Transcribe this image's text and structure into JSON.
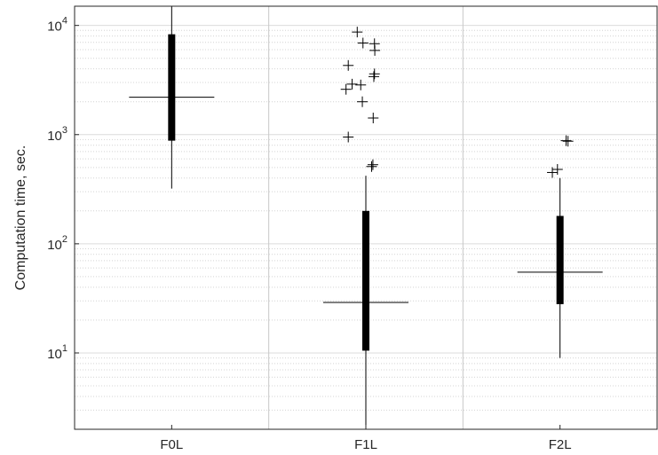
{
  "chart_data": {
    "type": "box",
    "ylabel": "Computation time, sec.",
    "xlabel": "",
    "yscale": "log",
    "ylim": [
      2,
      15000
    ],
    "yticks": [
      10,
      100,
      1000,
      10000
    ],
    "ytick_labels": [
      {
        "base": "10",
        "exp": "1"
      },
      {
        "base": "10",
        "exp": "2"
      },
      {
        "base": "10",
        "exp": "3"
      },
      {
        "base": "10",
        "exp": "4"
      }
    ],
    "categories": [
      "F0L",
      "F1L",
      "F2L"
    ],
    "grid": "minor dotted + major",
    "boxes": [
      {
        "label": "F0L",
        "median": 2200,
        "q1": 880,
        "q3": 8300,
        "whisker_low": 320,
        "whisker_high": 15000,
        "outliers": []
      },
      {
        "label": "F1L",
        "median": 29,
        "q1": 10.5,
        "q3": 200,
        "whisker_low": 2,
        "whisker_high": 420,
        "outliers": [
          {
            "x": -0.27,
            "y": 8700
          },
          {
            "x": 0.27,
            "y": 6800
          },
          {
            "x": -0.09,
            "y": 6900
          },
          {
            "x": 0.28,
            "y": 5900
          },
          {
            "x": -0.55,
            "y": 4300
          },
          {
            "x": 0.27,
            "y": 3600
          },
          {
            "x": 0.25,
            "y": 3400
          },
          {
            "x": -0.43,
            "y": 2900
          },
          {
            "x": -0.62,
            "y": 2600
          },
          {
            "x": -0.16,
            "y": 2850
          },
          {
            "x": -0.11,
            "y": 2000
          },
          {
            "x": 0.23,
            "y": 1420
          },
          {
            "x": -0.55,
            "y": 950
          },
          {
            "x": 0.22,
            "y": 530
          },
          {
            "x": 0.18,
            "y": 510
          }
        ]
      },
      {
        "label": "F2L",
        "median": 55,
        "q1": 28,
        "q3": 180,
        "whisker_low": 9,
        "whisker_high": 400,
        "outliers": [
          {
            "x": -0.08,
            "y": 480
          },
          {
            "x": -0.24,
            "y": 450
          },
          {
            "x": 0.19,
            "y": 880
          },
          {
            "x": 0.25,
            "y": 870
          }
        ]
      }
    ]
  }
}
